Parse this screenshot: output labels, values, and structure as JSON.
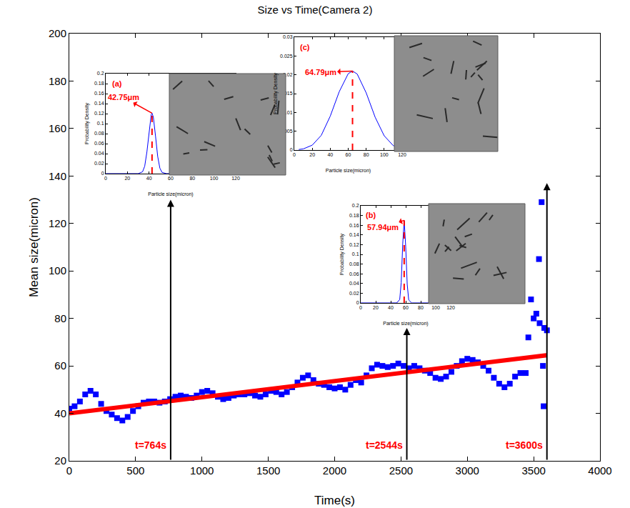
{
  "chart_data": [
    {
      "type": "scatter",
      "title": "Size vs Time(Camera 2)",
      "xlabel": "Time(s)",
      "ylabel": "Mean size(micron)",
      "xlim": [
        0,
        4000
      ],
      "xticks": [
        0,
        500,
        1000,
        1500,
        2000,
        2500,
        3000,
        3500,
        4000
      ],
      "ylim": [
        20,
        200
      ],
      "yticks": [
        20,
        40,
        60,
        80,
        100,
        120,
        140,
        160,
        180,
        200
      ],
      "grid": false,
      "series": [
        {
          "type": "scatter",
          "marker": "square",
          "color": "#0000ff",
          "x": [
            0,
            40,
            80,
            120,
            160,
            200,
            240,
            280,
            320,
            360,
            400,
            440,
            480,
            520,
            560,
            600,
            640,
            680,
            720,
            760,
            800,
            840,
            880,
            920,
            960,
            1000,
            1040,
            1080,
            1120,
            1160,
            1200,
            1240,
            1280,
            1320,
            1360,
            1400,
            1440,
            1480,
            1520,
            1560,
            1600,
            1640,
            1680,
            1720,
            1760,
            1800,
            1840,
            1880,
            1920,
            1960,
            2000,
            2040,
            2080,
            2120,
            2160,
            2200,
            2240,
            2280,
            2320,
            2360,
            2400,
            2440,
            2480,
            2520,
            2560,
            2600,
            2640,
            2680,
            2720,
            2760,
            2800,
            2840,
            2880,
            2920,
            2960,
            3000,
            3040,
            3080,
            3120,
            3160,
            3200,
            3240,
            3280,
            3320,
            3360,
            3400,
            3440,
            3460,
            3480,
            3500,
            3520,
            3540,
            3545,
            3560,
            3570,
            3575,
            3580,
            3600
          ],
          "values": [
            42,
            43,
            45,
            48,
            49.5,
            48,
            44,
            41,
            39.5,
            38,
            37,
            38.5,
            41,
            43,
            44.5,
            45,
            45,
            44.5,
            45,
            46,
            47,
            47.5,
            47,
            46.5,
            47.5,
            49,
            49.5,
            48.5,
            47,
            46,
            46.5,
            47.5,
            48,
            48,
            48.5,
            47.5,
            47,
            48,
            49.5,
            49,
            48,
            49,
            51,
            53,
            55,
            56,
            54,
            52.5,
            52,
            51,
            50.5,
            51,
            50,
            52,
            54,
            53,
            56,
            59,
            60.5,
            60,
            59.5,
            60,
            61,
            60,
            59,
            60,
            59,
            58,
            57,
            55,
            54.5,
            55.5,
            57.5,
            60,
            62,
            63,
            62.5,
            61.5,
            60,
            58,
            55,
            52.5,
            51,
            52.5,
            55.5,
            57,
            57,
            72,
            88,
            80,
            82,
            105,
            78,
            129,
            60,
            43,
            76,
            75
          ]
        },
        {
          "type": "line",
          "color": "#ff0000",
          "x": [
            0,
            3600
          ],
          "values": [
            40,
            64.5
          ]
        }
      ],
      "annotations": [
        {
          "text": "t=764s",
          "x": 764,
          "y": 130,
          "color": "#ff0000"
        },
        {
          "text": "t=2544s",
          "x": 2544,
          "y": 76,
          "color": "#ff0000"
        },
        {
          "text": "t=3600s",
          "x": 3600,
          "y": 137,
          "color": "#ff0000"
        }
      ]
    },
    {
      "type": "line",
      "panel": "(a)",
      "xlabel": "Particle size(micron)",
      "ylabel": "Probability Density",
      "xlim": [
        0,
        120
      ],
      "xticks": [
        0,
        20,
        40,
        60,
        80,
        100,
        120
      ],
      "ylim": [
        0,
        0.2
      ],
      "yticks": [
        0,
        0.02,
        0.04,
        0.06,
        0.08,
        0.1,
        0.12,
        0.14,
        0.16,
        0.18,
        0.2
      ],
      "grid": false,
      "color": "#0000ff",
      "x": [
        0,
        30,
        34,
        36,
        38,
        40,
        42,
        42.75,
        44,
        46,
        48,
        50,
        52,
        56,
        120
      ],
      "values": [
        0,
        0,
        0.0036,
        0.0149,
        0.043,
        0.0855,
        0.118,
        0.121,
        0.1127,
        0.0745,
        0.0341,
        0.0108,
        0.0024,
        0,
        0
      ],
      "annotations": [
        {
          "text": "42.75μm",
          "x": 42.75,
          "y": 0.121,
          "color": "#ff0000",
          "line_style": "dashed"
        }
      ]
    },
    {
      "type": "line",
      "panel": "(b)",
      "xlabel": "Particle size(micron)",
      "ylabel": "Probability Density",
      "xlim": [
        0,
        120
      ],
      "xticks": [
        0,
        20,
        40,
        60,
        80,
        100,
        120
      ],
      "ylim": [
        0,
        0.2
      ],
      "yticks": [
        0,
        0.02,
        0.04,
        0.06,
        0.08,
        0.1,
        0.12,
        0.14,
        0.16,
        0.18,
        0.2
      ],
      "grid": false,
      "color": "#0000ff",
      "x": [
        0,
        48,
        52,
        54,
        56,
        57.94,
        60,
        62,
        64,
        68,
        120
      ],
      "values": [
        0,
        0,
        0.007,
        0.0417,
        0.121,
        0.17,
        0.1158,
        0.0382,
        0.0061,
        0,
        0
      ],
      "annotations": [
        {
          "text": "57.94μm",
          "x": 57.94,
          "y": 0.17,
          "color": "#ff0000",
          "line_style": "dashed"
        }
      ]
    },
    {
      "type": "line",
      "panel": "(c)",
      "xlabel": "Particle size(micron)",
      "ylabel": "Probability Density",
      "xlim": [
        0,
        120
      ],
      "xticks": [
        0,
        20,
        40,
        60,
        80,
        100,
        120
      ],
      "ylim": [
        0,
        0.03
      ],
      "yticks": [
        0,
        0.005,
        0.01,
        0.015,
        0.02,
        0.025,
        0.03
      ],
      "grid": false,
      "color": "#0000ff",
      "x": [
        5,
        10,
        20,
        30,
        40,
        50,
        60,
        64.79,
        70,
        80,
        90,
        100,
        110,
        120
      ],
      "values": [
        0.00015,
        0.0003,
        0.0013,
        0.0039,
        0.009,
        0.0155,
        0.0203,
        0.021,
        0.0202,
        0.0152,
        0.0087,
        0.0038,
        0.0012,
        0.0003
      ],
      "annotations": [
        {
          "text": "64.79μm",
          "x": 64.79,
          "y": 0.021,
          "color": "#ff0000",
          "line_style": "dashed"
        }
      ]
    }
  ]
}
